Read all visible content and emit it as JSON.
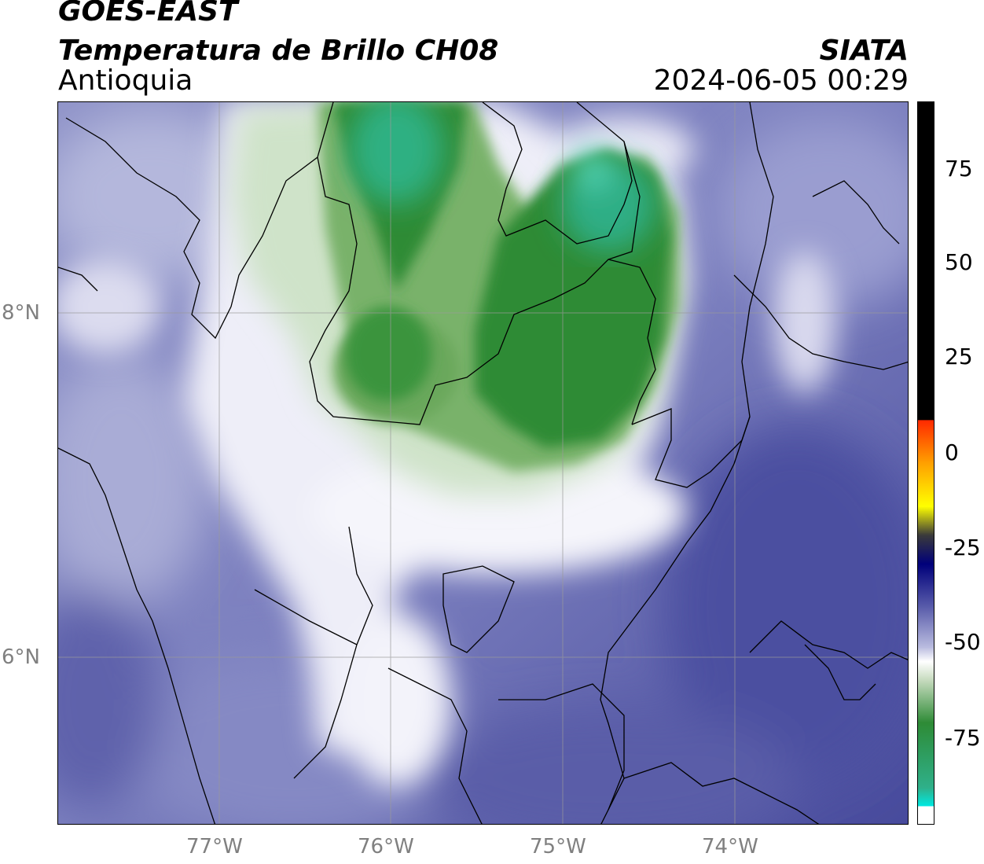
{
  "header": {
    "satellite": "GOES-EAST",
    "product": "Temperatura de Brillo CH08",
    "region": "Antioquia",
    "agency": "SIATA",
    "datetime": "2024-06-05 00:29"
  },
  "axes": {
    "x_ticks": [
      "77°W",
      "76°W",
      "75°W",
      "74°W"
    ],
    "y_ticks": [
      "8°N",
      "6°N"
    ]
  },
  "colorbar": {
    "labels": [
      "75",
      "50",
      "25",
      "0",
      "-25",
      "-50",
      "-75"
    ]
  }
}
